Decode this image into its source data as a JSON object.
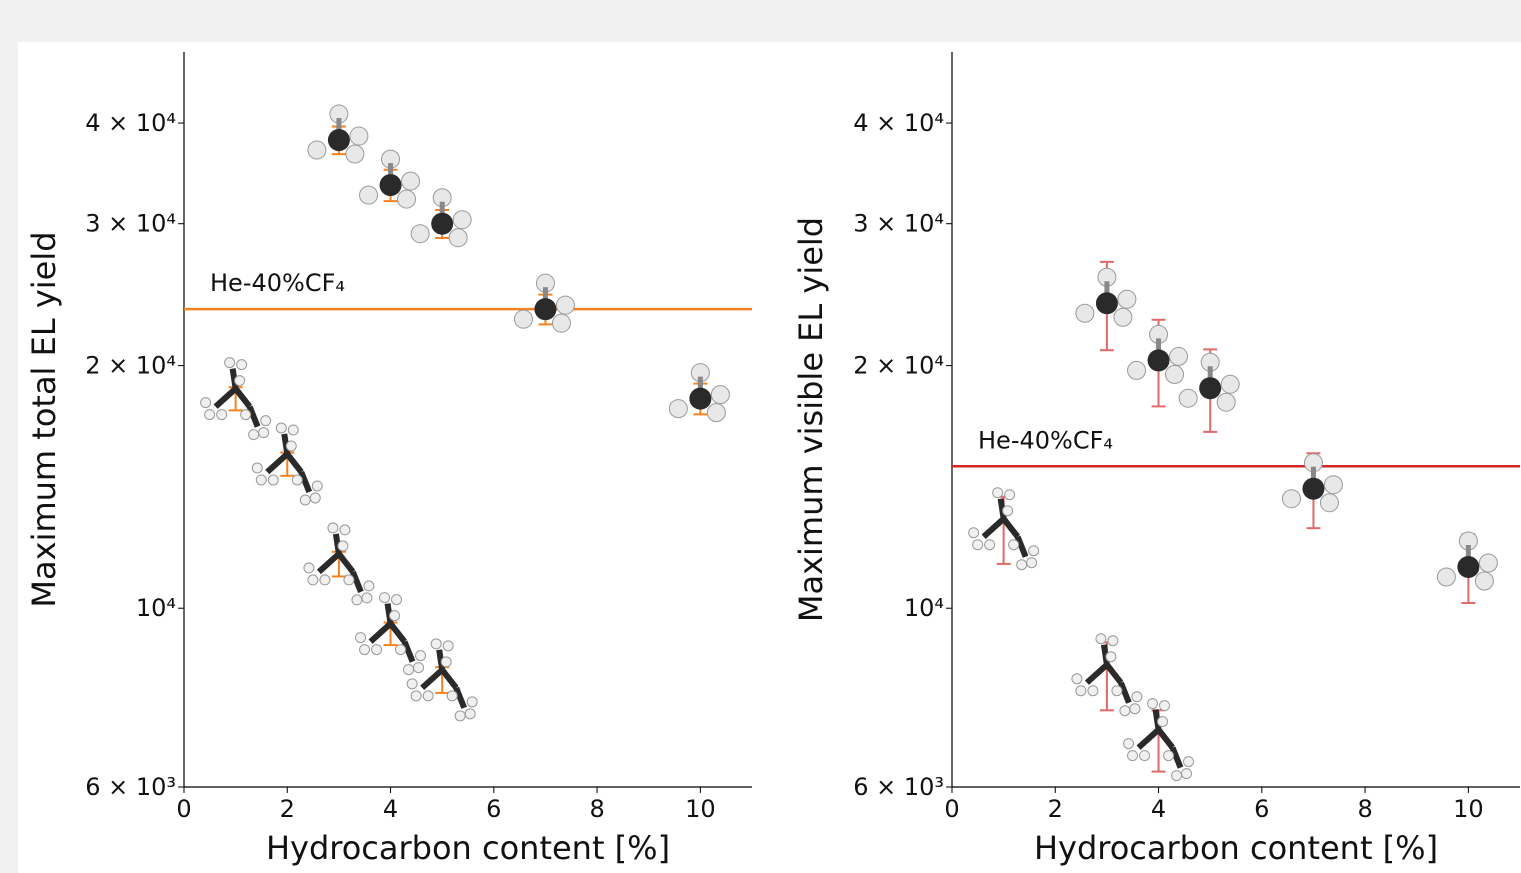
{
  "chart_data": [
    {
      "type": "scatter",
      "ylabel": "Maximum total EL yield",
      "xlabel": "Hydrocarbon content [%]",
      "xlim": [
        0,
        11
      ],
      "xticks": [
        0,
        2,
        4,
        6,
        8,
        10
      ],
      "ylim": [
        6000,
        49000
      ],
      "log_y": true,
      "yticks": [
        {
          "value": 6000,
          "label": "6 × 10³"
        },
        {
          "value": 10000,
          "label": "10⁴"
        },
        {
          "value": 20000,
          "label": "2 × 10⁴"
        },
        {
          "value": 30000,
          "label": "3 × 10⁴"
        },
        {
          "value": 40000,
          "label": "4 × 10⁴"
        }
      ],
      "hline": {
        "value": 23500,
        "label": "He-40%CF₄",
        "color": "#f5821f"
      },
      "series": [
        {
          "marker": "ball",
          "color": "#f5821f",
          "x": [
            3,
            4,
            5,
            7,
            10
          ],
          "values": [
            38100,
            33500,
            30000,
            23500,
            18200
          ],
          "errors": [
            1500,
            1500,
            1200,
            1000,
            800
          ]
        },
        {
          "marker": "stick",
          "color": "#f5821f",
          "x": [
            1,
            2,
            3,
            4,
            5
          ],
          "values": [
            18200,
            15100,
            11350,
            9300,
            8150
          ],
          "errors": [
            600,
            500,
            400,
            300,
            300
          ]
        }
      ]
    },
    {
      "type": "scatter",
      "ylabel": "Maximum visible EL yield",
      "xlabel": "Hydrocarbon content [%]",
      "xlim": [
        0,
        11
      ],
      "xticks": [
        0,
        2,
        4,
        6,
        8,
        10
      ],
      "ylim": [
        6000,
        49000
      ],
      "log_y": true,
      "yticks": [
        {
          "value": 6000,
          "label": "6 × 10³"
        },
        {
          "value": 10000,
          "label": "10⁴"
        },
        {
          "value": 20000,
          "label": "2 × 10⁴"
        },
        {
          "value": 30000,
          "label": "3 × 10⁴"
        },
        {
          "value": 40000,
          "label": "4 × 10⁴"
        }
      ],
      "hline": {
        "value": 15000,
        "label": "He-40%CF₄",
        "color": "#d62728"
      },
      "series": [
        {
          "marker": "ball",
          "color": "#e06a6a",
          "x": [
            3,
            4,
            5,
            7,
            10
          ],
          "values": [
            23900,
            20300,
            18750,
            14070,
            11250
          ],
          "errors": [
            3000,
            2500,
            2200,
            1500,
            1100
          ]
        },
        {
          "marker": "stick",
          "color": "#e06a6a",
          "x": [
            1,
            3,
            4
          ],
          "values": [
            12550,
            8270,
            6870
          ],
          "errors": [
            1200,
            800,
            600
          ]
        }
      ]
    }
  ]
}
